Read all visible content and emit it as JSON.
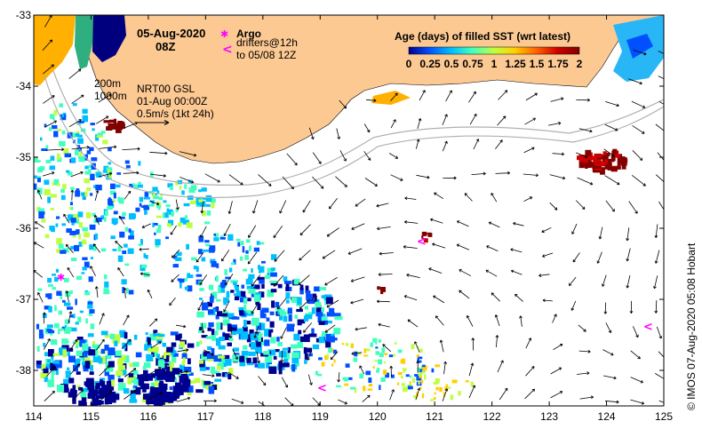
{
  "map": {
    "date_title": "05-Aug-2020",
    "time_title": "08Z",
    "argo_label": "Argo",
    "drifters_label": "drifters@12h",
    "drifters_to_label": "to 05/08 12Z",
    "argo_symbol": "✱",
    "drifter_symbol": "<",
    "isobath_200": "200m",
    "isobath_1000": "1000m",
    "product_label": "NRT00 GSL",
    "product_date": "01-Aug 00:00Z",
    "scale_label": "0.5m/s (1kt 24h)",
    "legend_title": "Age (days) of filled SST (wrt latest)",
    "legend_ticks": [
      "0",
      "0.25",
      "0.5",
      "0.75",
      "1",
      "1.25",
      "1.5",
      "1.75",
      "2"
    ],
    "credit": "© IMOS 07-Aug-2020 05:08 Hobart",
    "x_ticks": [
      "114",
      "115",
      "116",
      "117",
      "118",
      "119",
      "120",
      "121",
      "122",
      "123",
      "124",
      "125"
    ],
    "y_ticks": [
      "-33",
      "-34",
      "-35",
      "-36",
      "-37",
      "-38"
    ],
    "lon_range": [
      114,
      125
    ],
    "lat_range": [
      -38.5,
      -33
    ],
    "colors": {
      "land": "#fcc993",
      "ocean": "#ffffff",
      "arrow": "#000000",
      "isobath": "#b0b0b0",
      "argo": "#ff00ff",
      "drifter": "#ff00ff",
      "age_scale": [
        "#00008f",
        "#0050ff",
        "#00bfff",
        "#40ffbf",
        "#bfff40",
        "#ffd000",
        "#ff6000",
        "#d00000",
        "#800000"
      ]
    }
  }
}
